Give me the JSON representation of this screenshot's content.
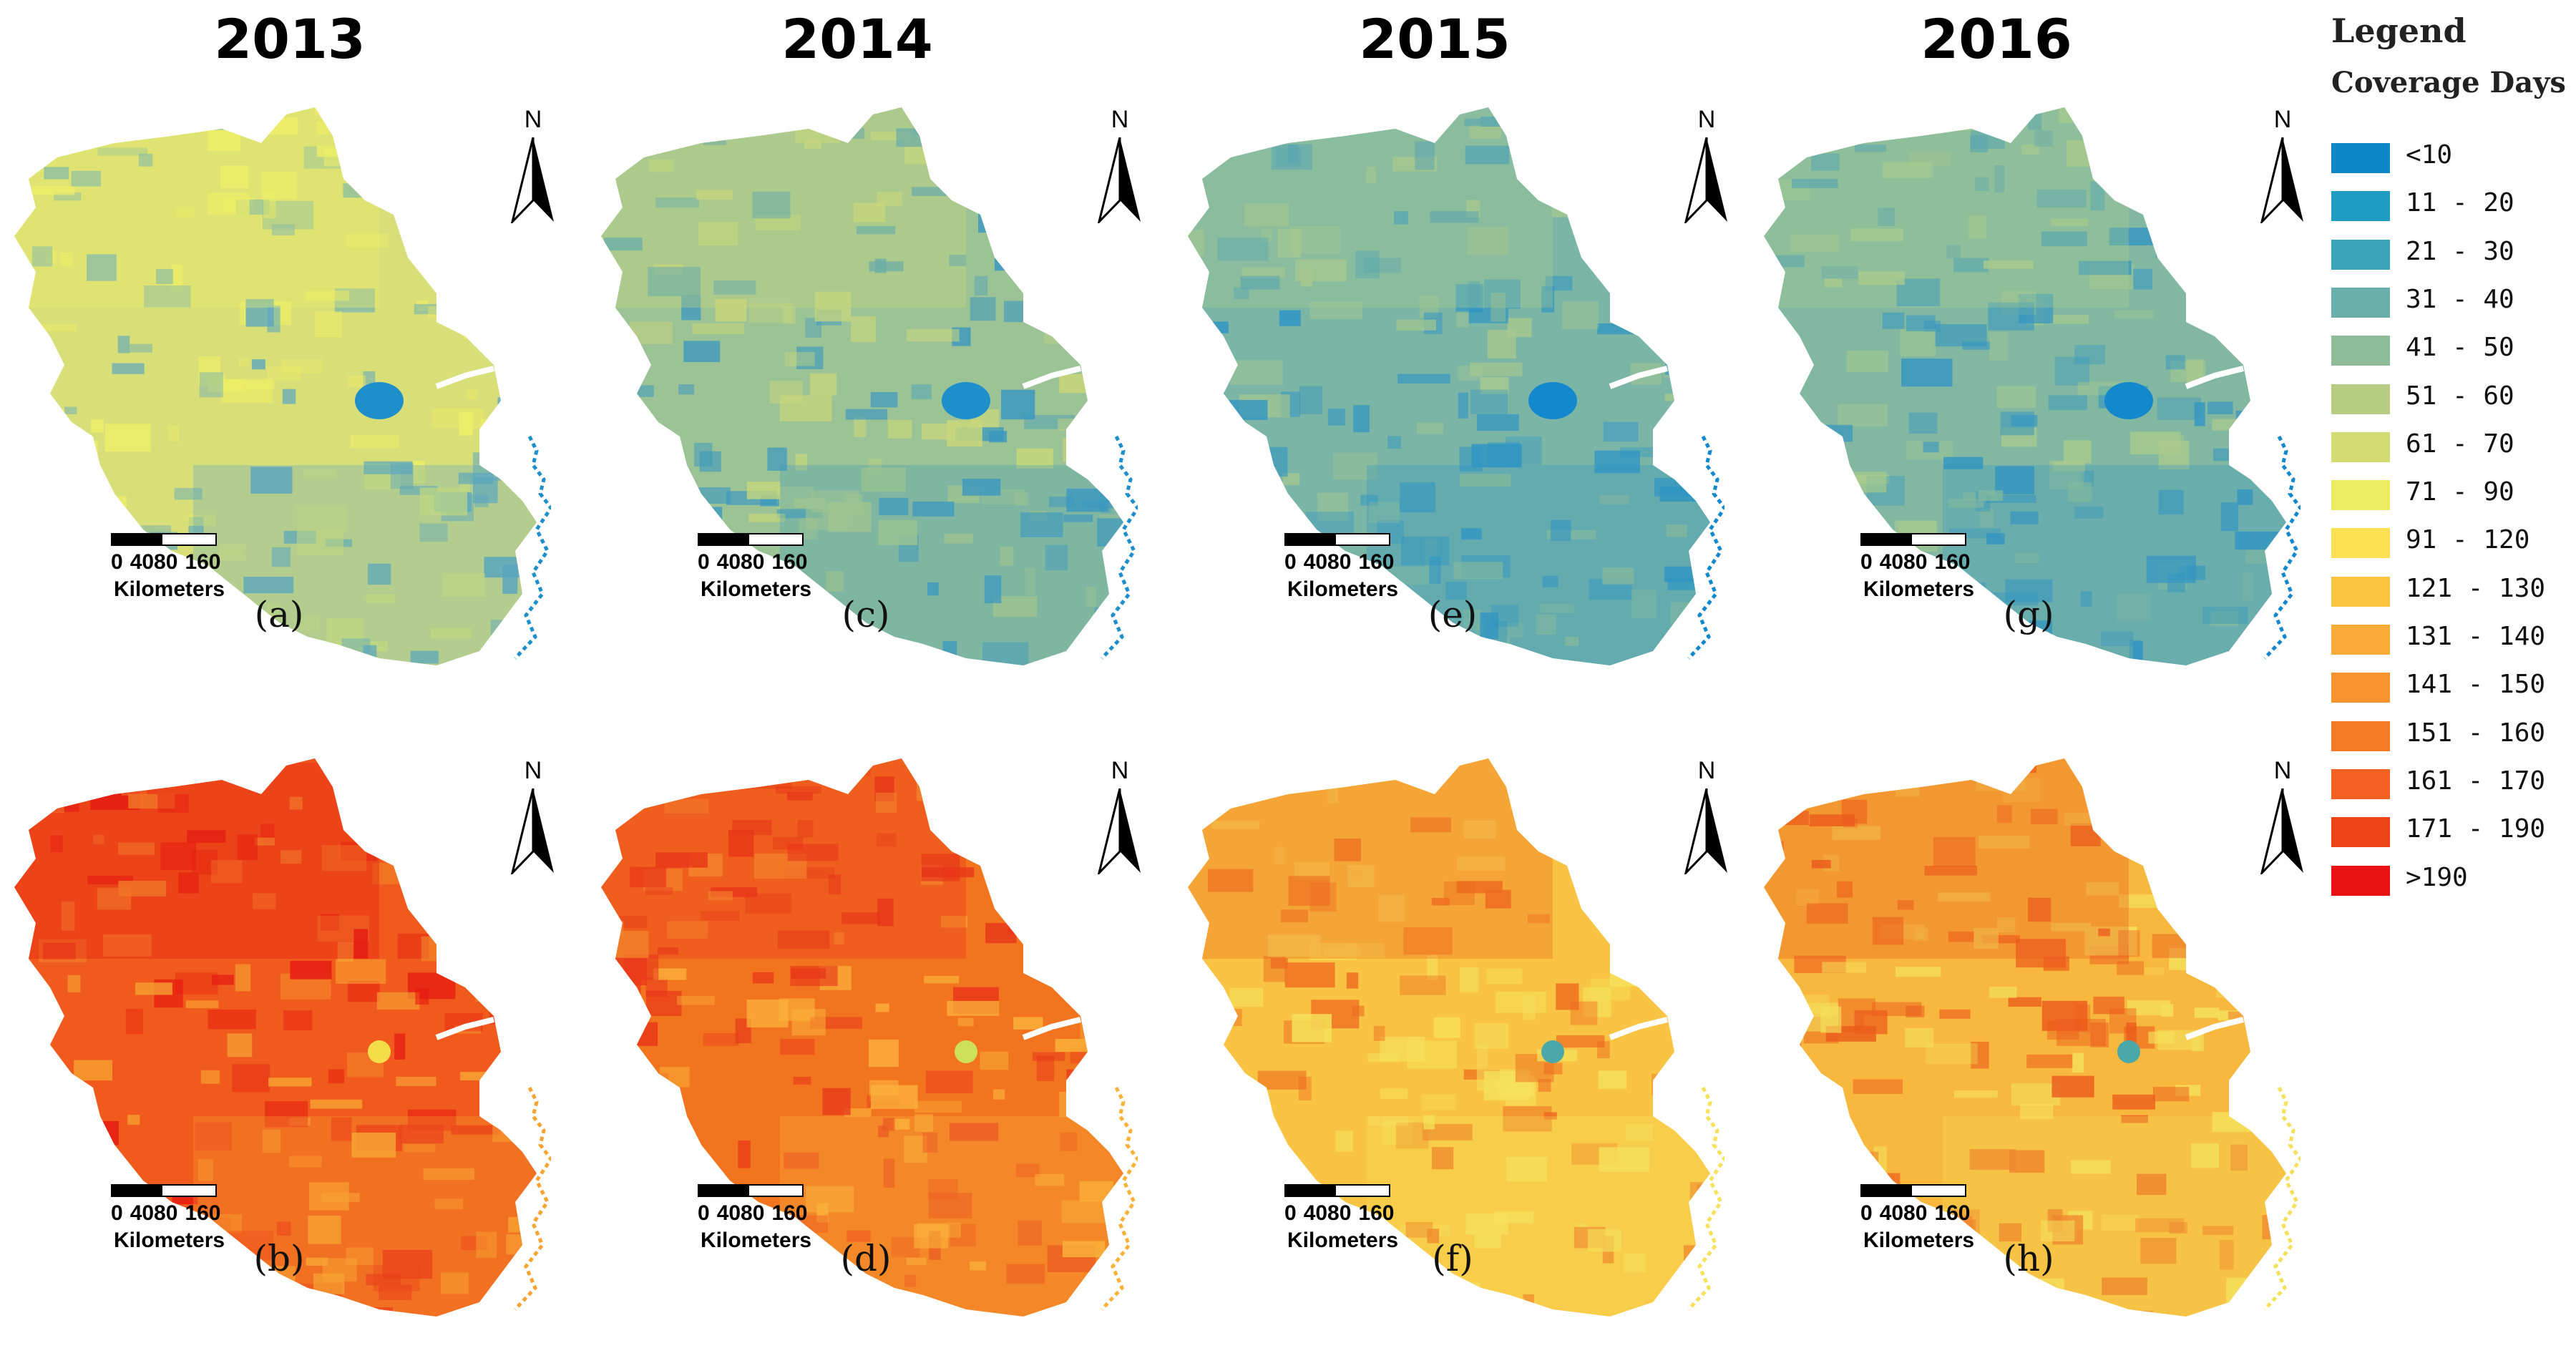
{
  "years": [
    "2013",
    "2014",
    "2015",
    "2016"
  ],
  "panels": [
    {
      "label": "(a)",
      "row": "top",
      "col": 0
    },
    {
      "label": "(c)",
      "row": "top",
      "col": 1
    },
    {
      "label": "(e)",
      "row": "top",
      "col": 2
    },
    {
      "label": "(g)",
      "row": "top",
      "col": 3
    },
    {
      "label": "(b)",
      "row": "bottom",
      "col": 0
    },
    {
      "label": "(d)",
      "row": "bottom",
      "col": 1
    },
    {
      "label": "(f)",
      "row": "bottom",
      "col": 2
    },
    {
      "label": "(h)",
      "row": "bottom",
      "col": 3
    }
  ],
  "scale_bar": {
    "ticks": [
      "0",
      "4080",
      "160"
    ],
    "unit": "Kilometers"
  },
  "north_arrow": {
    "label": "N",
    "icon": "north-arrow-icon"
  },
  "legend": {
    "title": "Legend",
    "subtitle": "Coverage Days",
    "classes": [
      {
        "label": "<10",
        "color": "#0e86c8"
      },
      {
        "label": "11 - 20",
        "color": "#1f9cc4"
      },
      {
        "label": "21 - 30",
        "color": "#3aa4b8"
      },
      {
        "label": "31 - 40",
        "color": "#6aafaa"
      },
      {
        "label": "41 - 50",
        "color": "#8ebc98"
      },
      {
        "label": "51 - 60",
        "color": "#b5cc82"
      },
      {
        "label": "61 - 70",
        "color": "#d2dc72"
      },
      {
        "label": "71 - 90",
        "color": "#ecec62"
      },
      {
        "label": "91 - 120",
        "color": "#fde152"
      },
      {
        "label": "121 - 130",
        "color": "#fbc541"
      },
      {
        "label": "131 - 140",
        "color": "#f9ac37"
      },
      {
        "label": "141 - 150",
        "color": "#f7942e"
      },
      {
        "label": "151 - 160",
        "color": "#f57b26"
      },
      {
        "label": "161 - 170",
        "color": "#f2611f"
      },
      {
        "label": "171 - 190",
        "color": "#ee4418"
      },
      {
        "label": ">190",
        "color": "#e81212"
      }
    ]
  },
  "map_fill": {
    "top_row": [
      {
        "base": "#d8de78",
        "light": "#eeee66",
        "dark": "#5aa6c0",
        "spot": "#1f8fcc"
      },
      {
        "base": "#9cc396",
        "light": "#c9d77a",
        "dark": "#3b98c0",
        "spot": "#1f8fcc"
      },
      {
        "base": "#7bb5a6",
        "light": "#a7c88e",
        "dark": "#2f95c4",
        "spot": "#1488cc"
      },
      {
        "base": "#82b8a2",
        "light": "#aacb8c",
        "dark": "#3395c2",
        "spot": "#1488cc"
      }
    ],
    "bottom_row": [
      {
        "base": "#f05a1c",
        "light": "#f7a433",
        "dark": "#e61a12",
        "spot": "#f3de4a"
      },
      {
        "base": "#f3741f",
        "light": "#fab23a",
        "dark": "#e8361a",
        "spot": "#cde05a"
      },
      {
        "base": "#f9c443",
        "light": "#f6e25a",
        "dark": "#ee6a1f",
        "spot": "#4aa9a8"
      },
      {
        "base": "#f8b73d",
        "light": "#f4e05a",
        "dark": "#ec5c1c",
        "spot": "#4aa9a8"
      }
    ]
  }
}
